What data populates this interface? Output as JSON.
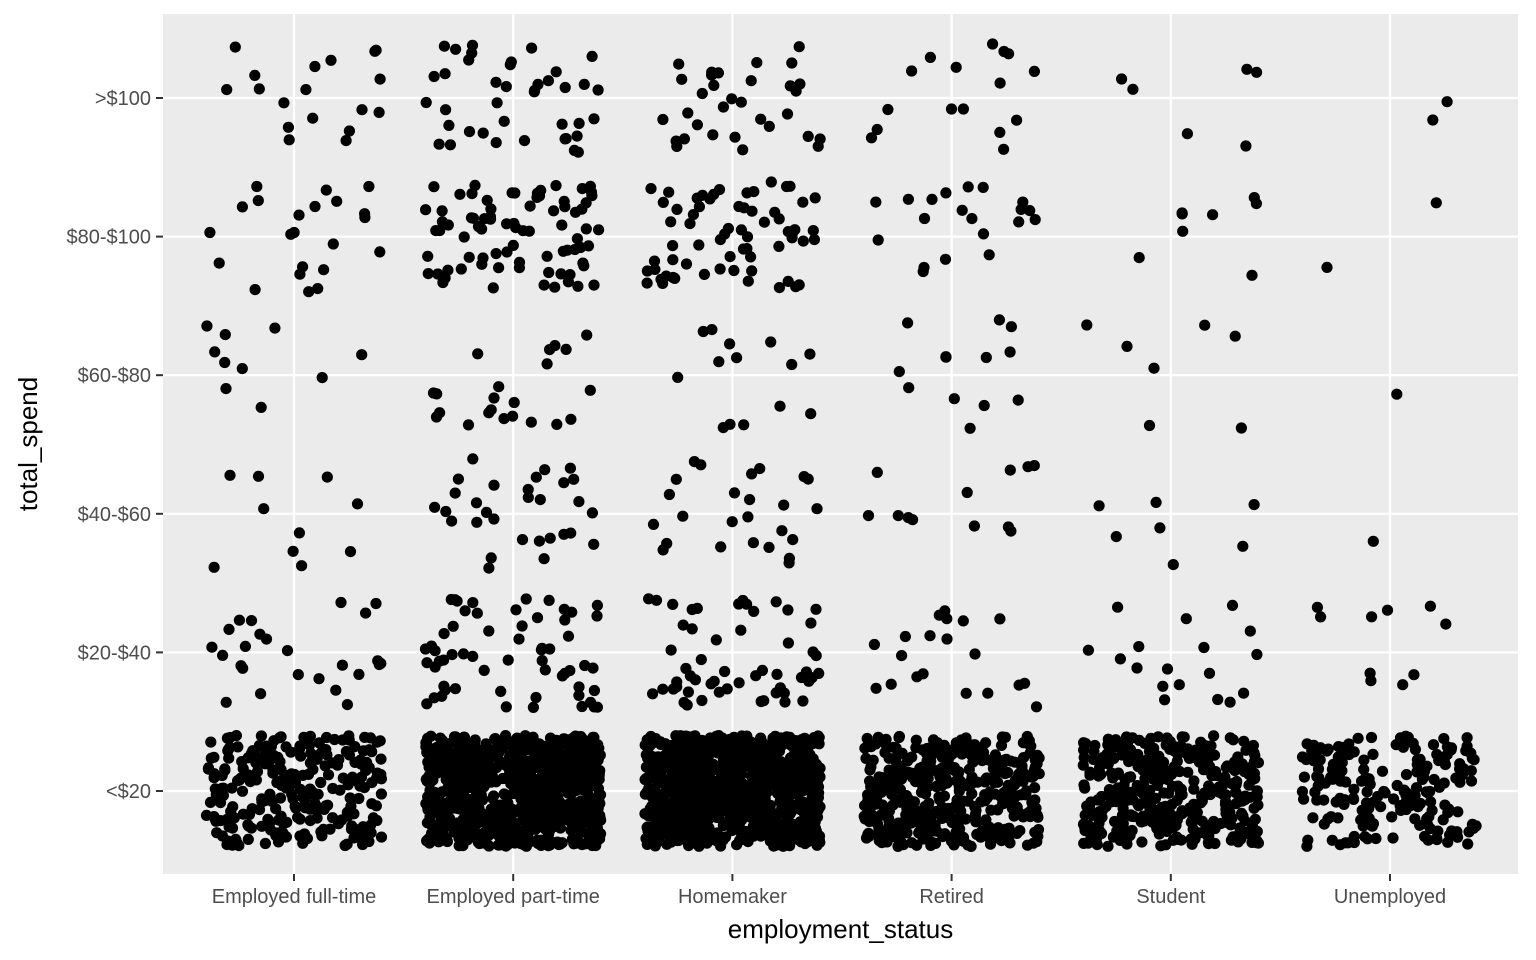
{
  "chart_data": {
    "type": "scatter",
    "subtype": "jitter",
    "title": "",
    "xlabel": "employment_status",
    "ylabel": "total_spend",
    "x_categories": [
      "Employed full-time",
      "Employed part-time",
      "Homemaker",
      "Retired",
      "Student",
      "Unemployed"
    ],
    "y_categories": [
      "<$20",
      "$20-$40",
      "$40-$60",
      "$60-$80",
      "$80-$100",
      ">$100"
    ],
    "counts": [
      [
        250,
        820,
        900,
        420,
        380,
        190
      ],
      [
        25,
        60,
        55,
        20,
        18,
        10
      ],
      [
        10,
        30,
        25,
        12,
        7,
        1
      ],
      [
        10,
        22,
        14,
        13,
        7,
        1
      ],
      [
        22,
        80,
        65,
        20,
        8,
        2
      ],
      [
        18,
        40,
        32,
        16,
        6,
        2
      ]
    ],
    "jitter": {
      "x": 0.4,
      "y": 0.4
    },
    "grid": true,
    "legend": "none",
    "colors": {
      "panel_background": "#EBEBEB",
      "grid": "#FFFFFF",
      "point": "#000000",
      "tick_label": "#4D4D4D",
      "axis_title": "#000000"
    }
  }
}
